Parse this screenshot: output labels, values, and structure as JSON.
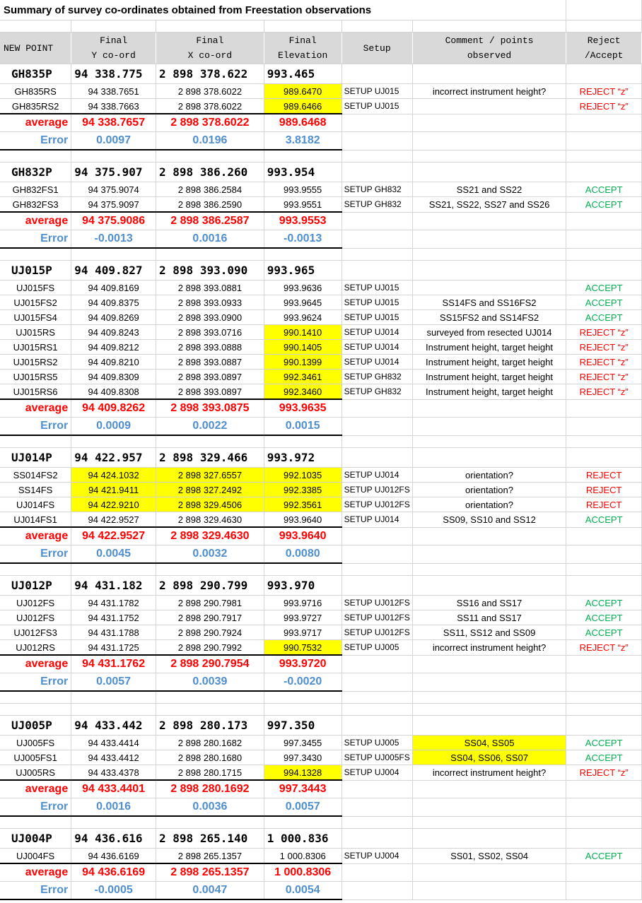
{
  "title": "Summary of survey co-ordinates obtained from Freestation observations",
  "colors": {
    "highlight": "#ffff00",
    "average_text": "#ff0000",
    "error_text": "#4f8fd0",
    "accept_text": "#00b050",
    "reject_text": "#ff0000",
    "header_bg": "#d9d9d9"
  },
  "header": {
    "new_point": "NEW POINT",
    "y_line1": "Final",
    "y_line2": "Y co-ord",
    "x_line1": "Final",
    "x_line2": "X co-ord",
    "z_line1": "Final",
    "z_line2": "Elevation",
    "setup": "Setup",
    "comment_line1": "Comment / points",
    "comment_line2": "observed",
    "reject_line1": "Reject",
    "reject_line2": "/Accept"
  },
  "average_label": "average",
  "error_label": "Error",
  "groups": [
    {
      "name": "GH835P",
      "y": "94 338.775",
      "x": "2 898 378.622",
      "z": "993.465",
      "rows": [
        {
          "name": "GH835RS",
          "y": "94 338.7651",
          "x": "2 898 378.6022",
          "z": "989.6470",
          "setup": "SETUP UJ015",
          "comment": "incorrect instrument height?",
          "status": "REJECT “z”",
          "hl": [
            "z"
          ]
        },
        {
          "name": "GH835RS2",
          "y": "94 338.7663",
          "x": "2 898 378.6022",
          "z": "989.6466",
          "setup": "SETUP UJ015",
          "comment": "",
          "status": "REJECT “z”",
          "hl": [
            "z"
          ]
        }
      ],
      "average": {
        "y": "94 338.7657",
        "x": "2 898 378.6022",
        "z": "989.6468"
      },
      "error": {
        "y": "0.0097",
        "x": "0.0196",
        "z": "3.8182"
      }
    },
    {
      "name": "GH832P",
      "y": "94 375.907",
      "x": "2 898 386.260",
      "z": "993.954",
      "rows": [
        {
          "name": "GH832FS1",
          "y": "94 375.9074",
          "x": "2 898 386.2584",
          "z": "993.9555",
          "setup": "SETUP GH832",
          "comment": "SS21 and SS22",
          "status": "ACCEPT",
          "hl": []
        },
        {
          "name": "GH832FS3",
          "y": "94 375.9097",
          "x": "2 898 386.2590",
          "z": "993.9551",
          "setup": "SETUP GH832",
          "comment": "SS21, SS22, SS27 and SS26",
          "status": "ACCEPT",
          "hl": []
        }
      ],
      "average": {
        "y": "94 375.9086",
        "x": "2 898 386.2587",
        "z": "993.9553"
      },
      "error": {
        "y": "-0.0013",
        "x": "0.0016",
        "z": "-0.0013"
      }
    },
    {
      "name": "UJ015P",
      "y": "94 409.827",
      "x": "2 898 393.090",
      "z": "993.965",
      "rows": [
        {
          "name": "UJ015FS",
          "y": "94 409.8169",
          "x": "2 898 393.0881",
          "z": "993.9636",
          "setup": "SETUP UJ015",
          "comment": "",
          "status": "ACCEPT",
          "hl": []
        },
        {
          "name": "UJ015FS2",
          "y": "94 409.8375",
          "x": "2 898 393.0933",
          "z": "993.9645",
          "setup": "SETUP UJ015",
          "comment": "SS14FS and SS16FS2",
          "status": "ACCEPT",
          "hl": []
        },
        {
          "name": "UJ015FS4",
          "y": "94 409.8269",
          "x": "2 898 393.0900",
          "z": "993.9624",
          "setup": "SETUP UJ015",
          "comment": "SS15FS2 and SS14FS2",
          "status": "ACCEPT",
          "hl": []
        },
        {
          "name": "UJ015RS",
          "y": "94 409.8243",
          "x": "2 898 393.0716",
          "z": "990.1410",
          "setup": "SETUP UJ014",
          "comment": "surveyed from resected UJ014",
          "status": "REJECT “z”",
          "hl": [
            "z"
          ]
        },
        {
          "name": "UJ015RS1",
          "y": "94 409.8212",
          "x": "2 898 393.0888",
          "z": "990.1405",
          "setup": "SETUP UJ014",
          "comment": "Instrument height, target height",
          "status": "REJECT “z”",
          "hl": [
            "z"
          ]
        },
        {
          "name": "UJ015RS2",
          "y": "94 409.8210",
          "x": "2 898 393.0887",
          "z": "990.1399",
          "setup": "SETUP UJ014",
          "comment": "Instrument height, target height",
          "status": "REJECT “z”",
          "hl": [
            "z"
          ]
        },
        {
          "name": "UJ015RS5",
          "y": "94 409.8309",
          "x": "2 898 393.0897",
          "z": "992.3461",
          "setup": "SETUP GH832",
          "comment": "Instrument height, target height",
          "status": "REJECT “z”",
          "hl": [
            "z"
          ]
        },
        {
          "name": "UJ015RS6",
          "y": "94 409.8308",
          "x": "2 898 393.0897",
          "z": "992.3460",
          "setup": "SETUP GH832",
          "comment": "Instrument height, target height",
          "status": "REJECT “z”",
          "hl": [
            "z"
          ]
        }
      ],
      "average": {
        "y": "94 409.8262",
        "x": "2 898 393.0875",
        "z": "993.9635"
      },
      "error": {
        "y": "0.0009",
        "x": "0.0022",
        "z": "0.0015"
      }
    },
    {
      "name": "UJ014P",
      "y": "94 422.957",
      "x": "2 898 329.466",
      "z": "993.972",
      "rows": [
        {
          "name": "SS014FS2",
          "y": "94 424.1032",
          "x": "2 898 327.6557",
          "z": "992.1035",
          "setup": "SETUP UJ014",
          "comment": "orientation?",
          "status": "REJECT",
          "hl": [
            "y",
            "x",
            "z"
          ]
        },
        {
          "name": "SS14FS",
          "y": "94 421.9411",
          "x": "2 898 327.2492",
          "z": "992.3385",
          "setup": "SETUP UJ012FS",
          "comment": "orientation?",
          "status": "REJECT",
          "hl": [
            "y",
            "x",
            "z"
          ]
        },
        {
          "name": "UJ014FS",
          "y": "94 422.9210",
          "x": "2 898 329.4506",
          "z": "992.3561",
          "setup": "SETUP UJ012FS",
          "comment": "orientation?",
          "status": "REJECT",
          "hl": [
            "y",
            "x",
            "z"
          ]
        },
        {
          "name": "UJ014FS1",
          "y": "94 422.9527",
          "x": "2 898 329.4630",
          "z": "993.9640",
          "setup": "SETUP UJ014",
          "comment": "SS09, SS10 and SS12",
          "status": "ACCEPT",
          "hl": []
        }
      ],
      "average": {
        "y": "94 422.9527",
        "x": "2 898 329.4630",
        "z": "993.9640"
      },
      "error": {
        "y": "0.0045",
        "x": "0.0032",
        "z": "0.0080"
      }
    },
    {
      "name": "UJ012P",
      "y": "94 431.182",
      "x": "2 898 290.799",
      "z": "993.970",
      "rows": [
        {
          "name": "UJ012FS",
          "y": "94 431.1782",
          "x": "2 898 290.7981",
          "z": "993.9716",
          "setup": "SETUP UJ012FS",
          "comment": "SS16 and SS17",
          "status": "ACCEPT",
          "hl": []
        },
        {
          "name": "UJ012FS",
          "y": "94 431.1752",
          "x": "2 898 290.7917",
          "z": "993.9727",
          "setup": "SETUP UJ012FS",
          "comment": "SS11 and SS17",
          "status": "ACCEPT",
          "hl": []
        },
        {
          "name": "UJ012FS3",
          "y": "94 431.1788",
          "x": "2 898 290.7924",
          "z": "993.9717",
          "setup": "SETUP UJ012FS",
          "comment": "SS11, SS12 and SS09",
          "status": "ACCEPT",
          "hl": []
        },
        {
          "name": "UJ012RS",
          "y": "94 431.1725",
          "x": "2 898 290.7992",
          "z": "990.7532",
          "setup": "SETUP UJ005",
          "comment": "incorrect instrument height?",
          "status": "REJECT “z”",
          "hl": [
            "z"
          ]
        }
      ],
      "average": {
        "y": "94 431.1762",
        "x": "2 898 290.7954",
        "z": "993.9720"
      },
      "error": {
        "y": "0.0057",
        "x": "0.0039",
        "z": "-0.0020"
      }
    },
    {
      "name": "UJ005P",
      "y": "94 433.442",
      "x": "2 898 280.173",
      "z": "997.350",
      "rows": [
        {
          "name": "UJ005FS",
          "y": "94 433.4414",
          "x": "2 898 280.1682",
          "z": "997.3455",
          "setup": "SETUP UJ005",
          "comment": "SS04, SS05",
          "status": "ACCEPT",
          "hl": [
            "comment"
          ]
        },
        {
          "name": "UJ005FS1",
          "y": "94 433.4412",
          "x": "2 898 280.1680",
          "z": "997.3430",
          "setup": "SETUP UJ005FS",
          "comment": "SS04, SS06, SS07",
          "status": "ACCEPT",
          "hl": [
            "comment"
          ]
        },
        {
          "name": "UJ005RS",
          "y": "94 433.4378",
          "x": "2 898 280.1715",
          "z": "994.1328",
          "setup": "SETUP UJ004",
          "comment": "incorrect instrument height?",
          "status": "REJECT “z”",
          "hl": [
            "z"
          ]
        }
      ],
      "average": {
        "y": "94 433.4401",
        "x": "2 898 280.1692",
        "z": "997.3443"
      },
      "error": {
        "y": "0.0016",
        "x": "0.0036",
        "z": "0.0057"
      }
    },
    {
      "name": "UJ004P",
      "y": "94 436.616",
      "x": "2 898 265.140",
      "z": "1 000.836",
      "rows": [
        {
          "name": "UJ004FS",
          "y": "94 436.6169",
          "x": "2 898 265.1357",
          "z": "1 000.8306",
          "setup": "SETUP UJ004",
          "comment": "SS01, SS02, SS04",
          "status": "ACCEPT",
          "hl": []
        }
      ],
      "average": {
        "y": "94 436.6169",
        "x": "2 898 265.1357",
        "z": "1 000.8306"
      },
      "error": {
        "y": "-0.0005",
        "x": "0.0047",
        "z": "0.0054"
      }
    }
  ]
}
